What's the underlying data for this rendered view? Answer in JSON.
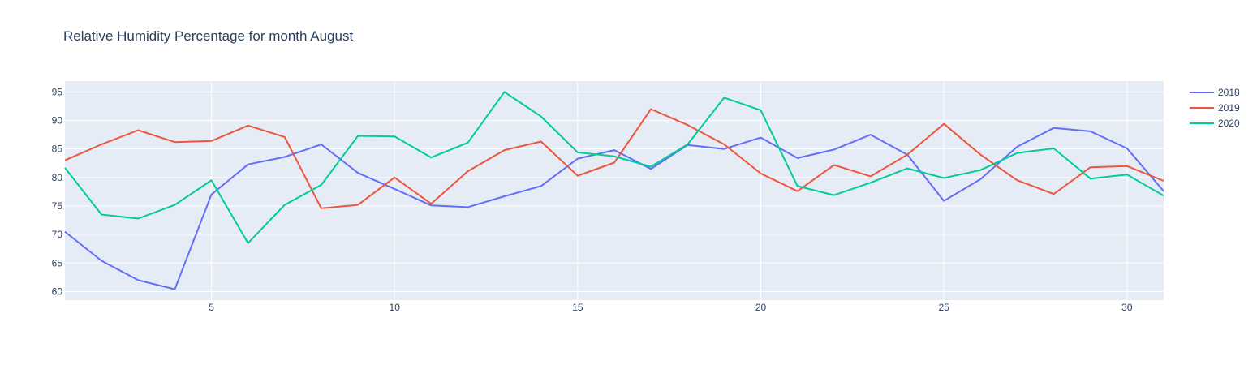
{
  "chart_data": {
    "type": "line",
    "title": "Relative Humidity Percentage for month August",
    "xlabel": "",
    "ylabel": "",
    "xlim": [
      1,
      31
    ],
    "ylim": [
      58.5,
      96.9
    ],
    "x_ticks": [
      5,
      10,
      15,
      20,
      25,
      30
    ],
    "y_ticks": [
      60,
      65,
      70,
      75,
      80,
      85,
      90,
      95
    ],
    "grid": true,
    "legend_position": "right",
    "x": [
      1,
      2,
      3,
      4,
      5,
      6,
      7,
      8,
      9,
      10,
      11,
      12,
      13,
      14,
      15,
      16,
      17,
      18,
      19,
      20,
      21,
      22,
      23,
      24,
      25,
      26,
      27,
      28,
      29,
      30,
      31
    ],
    "series": [
      {
        "name": "2018",
        "color": "#636efa",
        "values": [
          70.5,
          65.4,
          62.0,
          60.4,
          77.0,
          82.3,
          83.6,
          85.8,
          80.8,
          78.0,
          75.1,
          74.8,
          76.7,
          78.5,
          83.3,
          84.8,
          81.5,
          85.7,
          85.0,
          87.0,
          83.4,
          84.9,
          87.5,
          84.0,
          75.9,
          79.7,
          85.4,
          88.7,
          88.1,
          85.1,
          77.6
        ]
      },
      {
        "name": "2019",
        "color": "#ef553b",
        "values": [
          83.0,
          85.8,
          88.3,
          86.2,
          86.4,
          89.1,
          87.1,
          74.6,
          75.2,
          80.0,
          75.4,
          81.1,
          84.8,
          86.3,
          80.3,
          82.6,
          92.0,
          89.2,
          85.8,
          80.7,
          77.6,
          82.2,
          80.2,
          84.0,
          89.4,
          84.0,
          79.5,
          77.1,
          81.8,
          82.0,
          79.4
        ]
      },
      {
        "name": "2020",
        "color": "#00cc96",
        "values": [
          81.7,
          73.5,
          72.8,
          75.2,
          79.5,
          68.5,
          75.2,
          78.7,
          87.3,
          87.2,
          83.5,
          86.1,
          95.0,
          90.7,
          84.4,
          83.7,
          81.9,
          85.8,
          94.0,
          91.8,
          78.5,
          76.9,
          79.1,
          81.6,
          79.9,
          81.3,
          84.3,
          85.1,
          79.8,
          80.5,
          76.8
        ]
      }
    ]
  }
}
